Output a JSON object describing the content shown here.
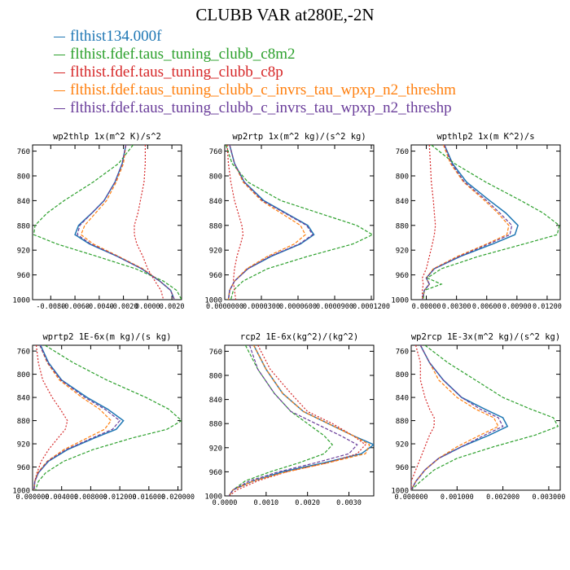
{
  "title": "CLUBB VAR at280E,-2N",
  "legend": [
    {
      "label": "flthist134.000f",
      "color": "#1f77b4"
    },
    {
      "label": "flthist.fdef.taus_tuning_clubb_c8m2",
      "color": "#2ca02c"
    },
    {
      "label": "flthist.fdef.taus_tuning_clubb_c8p",
      "color": "#d62728"
    },
    {
      "label": "flthist.fdef.taus_tuning_clubb_c_invrs_tau_wpxp_n2_threshm",
      "color": "#ff7f0e"
    },
    {
      "label": "flthist.fdef.taus_tuning_clubb_c_invrs_tau_wpxp_n2_threshp",
      "color": "#6a3d9a"
    }
  ],
  "chart_data": [
    {
      "type": "line",
      "title": "wp2thlp  1x(m^2 K)/s^2",
      "xlim": [
        -0.0095,
        0.0028
      ],
      "ylim": [
        1000,
        750
      ],
      "x_ticks": [
        -0.008,
        -0.006,
        -0.004,
        -0.002,
        0.0,
        0.002
      ],
      "x_tick_labels": [
        "-0.0080",
        "-0.0060",
        "-0.0040",
        "-0.0020",
        "0.0000",
        "0.0020"
      ],
      "y_ticks": [
        760,
        800,
        840,
        880,
        920,
        960,
        1000
      ],
      "y": [
        750,
        780,
        810,
        840,
        860,
        880,
        895,
        910,
        930,
        950,
        970,
        985,
        1000
      ],
      "series": [
        {
          "values": [
            -0.0018,
            -0.0021,
            -0.0027,
            -0.0036,
            -0.0046,
            -0.0057,
            -0.006,
            -0.0048,
            -0.0025,
            -0.0005,
            0.001,
            0.0019,
            0.0022
          ]
        },
        {
          "values": [
            -0.0012,
            -0.0024,
            -0.0045,
            -0.0069,
            -0.0083,
            -0.0093,
            -0.0094,
            -0.0075,
            -0.0042,
            -0.001,
            0.0013,
            0.0024,
            0.0028
          ]
        },
        {
          "values": [
            -0.0002,
            -0.0002,
            -0.0003,
            -0.0006,
            -0.0008,
            -0.0011,
            -0.0011,
            -0.0009,
            -0.0004,
            0.0,
            0.0006,
            0.0011,
            0.0013
          ]
        },
        {
          "values": [
            -0.0018,
            -0.002,
            -0.0026,
            -0.0034,
            -0.0043,
            -0.0052,
            -0.0055,
            -0.0045,
            -0.0024,
            -0.0004,
            0.001,
            0.0019,
            0.0022
          ]
        },
        {
          "values": [
            -0.0018,
            -0.0021,
            -0.0027,
            -0.0036,
            -0.0046,
            -0.0056,
            -0.0058,
            -0.0047,
            -0.0025,
            -0.0005,
            0.001,
            0.0019,
            0.0022
          ]
        }
      ]
    },
    {
      "type": "line",
      "title": "wp2rtp  1x(m^2 kg)/(s^2 kg)",
      "xlim": [
        0.0,
        0.000122
      ],
      "ylim": [
        1000,
        750
      ],
      "x_ticks": [
        0.0,
        3e-05,
        6e-05,
        9e-05,
        0.00012
      ],
      "x_tick_labels": [
        "0.0000000",
        "0.0000300",
        "0.0000600",
        "0.0000900",
        "0.0001200"
      ],
      "y_ticks": [
        760,
        800,
        840,
        880,
        920,
        960,
        1000
      ],
      "y": [
        750,
        780,
        810,
        840,
        860,
        880,
        895,
        910,
        930,
        950,
        970,
        985,
        1000
      ],
      "series": [
        {
          "values": [
            4e-06,
            8e-06,
            1.6e-05,
            3.2e-05,
            5e-05,
            6.8e-05,
            7.3e-05,
            6.2e-05,
            3.8e-05,
            1.9e-05,
            8e-06,
            4e-06,
            3e-06
          ]
        },
        {
          "values": [
            1e-06,
            6e-06,
            1.9e-05,
            4.6e-05,
            7.7e-05,
            0.000108,
            0.000121,
            0.000105,
            6.8e-05,
            3.5e-05,
            1.5e-05,
            7e-06,
            5e-06
          ]
        },
        {
          "values": [
            2e-06,
            3e-06,
            5e-06,
            8e-06,
            1.1e-05,
            1.4e-05,
            1.5e-05,
            1.3e-05,
            1e-05,
            8e-06,
            7e-06,
            8e-06,
            9e-06
          ]
        },
        {
          "values": [
            4e-06,
            8e-06,
            1.5e-05,
            3e-05,
            4.6e-05,
            6.2e-05,
            6.6e-05,
            5.7e-05,
            3.5e-05,
            1.8e-05,
            8e-06,
            4e-06,
            3e-06
          ]
        },
        {
          "values": [
            4e-06,
            8e-06,
            1.6e-05,
            3.1e-05,
            4.9e-05,
            6.7e-05,
            7.2e-05,
            6.1e-05,
            3.7e-05,
            1.9e-05,
            8e-06,
            4e-06,
            3e-06
          ]
        }
      ]
    },
    {
      "type": "line",
      "title": "wpthlp2  1x(m K^2)/s",
      "xlim": [
        -0.0015,
        0.0133
      ],
      "ylim": [
        1000,
        750
      ],
      "x_ticks": [
        0.0,
        0.003,
        0.006,
        0.009,
        0.012
      ],
      "x_tick_labels": [
        "0.00000",
        "0.00300",
        "0.00600",
        "0.00900",
        "0.01200"
      ],
      "y_ticks": [
        760,
        800,
        840,
        880,
        920,
        960,
        1000
      ],
      "y": [
        750,
        780,
        810,
        840,
        860,
        880,
        895,
        910,
        930,
        950,
        965,
        975,
        985,
        1000
      ],
      "series": [
        {
          "values": [
            0.0018,
            0.0026,
            0.004,
            0.0063,
            0.0079,
            0.0091,
            0.0088,
            0.0066,
            0.0034,
            0.0008,
            0.0,
            0.0003,
            -0.0002,
            -0.0004
          ]
        },
        {
          "values": [
            0.0005,
            0.0028,
            0.0059,
            0.0094,
            0.0116,
            0.0132,
            0.013,
            0.0097,
            0.0052,
            0.0015,
            0.0001,
            0.0015,
            -0.0002,
            -0.0003
          ]
        },
        {
          "values": [
            0.0003,
            0.0004,
            0.0005,
            0.0007,
            0.0008,
            0.0009,
            0.0008,
            0.0006,
            0.0003,
            0.0,
            -0.0004,
            -0.0003,
            -0.0004,
            -0.0004
          ]
        },
        {
          "values": [
            0.0017,
            0.0024,
            0.0037,
            0.0058,
            0.0071,
            0.0082,
            0.008,
            0.006,
            0.0031,
            0.0007,
            0.0,
            0.0003,
            -0.0002,
            -0.0004
          ]
        },
        {
          "values": [
            0.0018,
            0.0025,
            0.0038,
            0.006,
            0.0073,
            0.0085,
            0.0083,
            0.0062,
            0.0033,
            0.0008,
            0.0,
            0.0003,
            -0.0002,
            -0.0004
          ]
        }
      ]
    },
    {
      "type": "line",
      "title": "wprtp2  1E-6x(m kg)/(s kg)",
      "xlim": [
        0.0,
        0.0205
      ],
      "ylim": [
        1000,
        750
      ],
      "x_ticks": [
        0.0,
        0.004,
        0.008,
        0.012,
        0.016,
        0.02
      ],
      "x_tick_labels": [
        "0.000000",
        "0.004000",
        "0.008000",
        "0.012000",
        "0.016000",
        "0.020000"
      ],
      "y_ticks": [
        760,
        800,
        840,
        880,
        920,
        960,
        1000
      ],
      "y": [
        750,
        780,
        810,
        840,
        860,
        880,
        895,
        910,
        930,
        950,
        970,
        985,
        1000
      ],
      "series": [
        {
          "values": [
            0.0011,
            0.0022,
            0.004,
            0.0075,
            0.0103,
            0.0125,
            0.0115,
            0.0085,
            0.0048,
            0.0022,
            0.0008,
            0.0003,
            0.0002
          ]
        },
        {
          "values": [
            0.0017,
            0.0056,
            0.0102,
            0.0156,
            0.0187,
            0.0205,
            0.0185,
            0.0137,
            0.0083,
            0.0043,
            0.0018,
            0.0008,
            0.0004
          ]
        },
        {
          "values": [
            0.0005,
            0.0008,
            0.0014,
            0.0027,
            0.0038,
            0.0048,
            0.0045,
            0.0035,
            0.0022,
            0.0012,
            0.0006,
            0.0003,
            0.0002
          ]
        },
        {
          "values": [
            0.001,
            0.002,
            0.0037,
            0.0068,
            0.0092,
            0.0108,
            0.0099,
            0.0075,
            0.0043,
            0.002,
            0.0007,
            0.0003,
            0.0002
          ]
        },
        {
          "values": [
            0.001,
            0.0021,
            0.0039,
            0.0072,
            0.0099,
            0.012,
            0.011,
            0.0082,
            0.0046,
            0.0021,
            0.0008,
            0.0003,
            0.0002
          ]
        }
      ]
    },
    {
      "type": "line",
      "title": "rcp2  1E-6x(kg^2)/(kg^2)",
      "xlim": [
        0.0,
        0.0036
      ],
      "ylim": [
        1000,
        750
      ],
      "x_ticks": [
        0.0,
        0.001,
        0.002,
        0.003
      ],
      "x_tick_labels": [
        "0.0000",
        "0.0010",
        "0.0020",
        "0.0030"
      ],
      "y_ticks": [
        760,
        800,
        840,
        880,
        920,
        960,
        1000
      ],
      "y": [
        750,
        790,
        830,
        860,
        880,
        900,
        915,
        930,
        945,
        960,
        975,
        990,
        1000
      ],
      "series": [
        {
          "values": [
            0.0007,
            0.001,
            0.0014,
            0.0019,
            0.0025,
            0.0031,
            0.0036,
            0.0033,
            0.0024,
            0.0014,
            0.0007,
            0.0002,
            0.0001
          ]
        },
        {
          "values": [
            0.0005,
            0.0008,
            0.0012,
            0.0016,
            0.002,
            0.0024,
            0.0026,
            0.0024,
            0.0018,
            0.0011,
            0.0005,
            0.0002,
            0.0001
          ]
        },
        {
          "values": [
            0.0008,
            0.0011,
            0.0016,
            0.002,
            0.0026,
            0.0031,
            0.0034,
            0.0032,
            0.0025,
            0.0015,
            0.0008,
            0.0003,
            0.0001
          ]
        },
        {
          "values": [
            0.0007,
            0.001,
            0.0014,
            0.0019,
            0.0025,
            0.0031,
            0.0035,
            0.0034,
            0.0025,
            0.0015,
            0.0007,
            0.0002,
            0.0001
          ]
        },
        {
          "values": [
            0.0006,
            0.0008,
            0.0012,
            0.0016,
            0.0022,
            0.0028,
            0.0032,
            0.003,
            0.0022,
            0.0013,
            0.0006,
            0.0002,
            0.0001
          ]
        }
      ]
    },
    {
      "type": "line",
      "title": "wp2rcp  1E-3x(m^2 kg)/(s^2 kg)",
      "xlim": [
        0.0,
        0.00325
      ],
      "ylim": [
        1000,
        750
      ],
      "x_ticks": [
        0.0,
        0.001,
        0.002,
        0.003
      ],
      "x_tick_labels": [
        "0.000000",
        "0.001000",
        "0.002000",
        "0.003000"
      ],
      "y_ticks": [
        760,
        800,
        840,
        880,
        920,
        960,
        1000
      ],
      "y": [
        750,
        780,
        810,
        840,
        860,
        875,
        890,
        905,
        925,
        945,
        965,
        985,
        1000
      ],
      "series": [
        {
          "values": [
            0.0002,
            0.0004,
            0.0007,
            0.0011,
            0.0016,
            0.002,
            0.0021,
            0.0017,
            0.0011,
            0.0006,
            0.0003,
            0.0001,
            0.0
          ]
        },
        {
          "values": [
            0.0003,
            0.0008,
            0.0014,
            0.002,
            0.0026,
            0.0031,
            0.0032,
            0.0027,
            0.0018,
            0.001,
            0.0005,
            0.0002,
            0.0
          ]
        },
        {
          "values": [
            0.0001,
            0.0002,
            0.0002,
            0.0003,
            0.0004,
            0.0005,
            0.0005,
            0.0004,
            0.0003,
            0.0002,
            0.0001,
            0.0,
            0.0
          ]
        },
        {
          "values": [
            0.0002,
            0.0004,
            0.0006,
            0.001,
            0.0014,
            0.0018,
            0.0019,
            0.0015,
            0.001,
            0.0006,
            0.0003,
            0.0001,
            0.0
          ]
        },
        {
          "values": [
            0.0002,
            0.0004,
            0.0007,
            0.0011,
            0.0015,
            0.0019,
            0.002,
            0.0016,
            0.0011,
            0.0006,
            0.0003,
            0.0001,
            0.0
          ]
        }
      ]
    }
  ]
}
